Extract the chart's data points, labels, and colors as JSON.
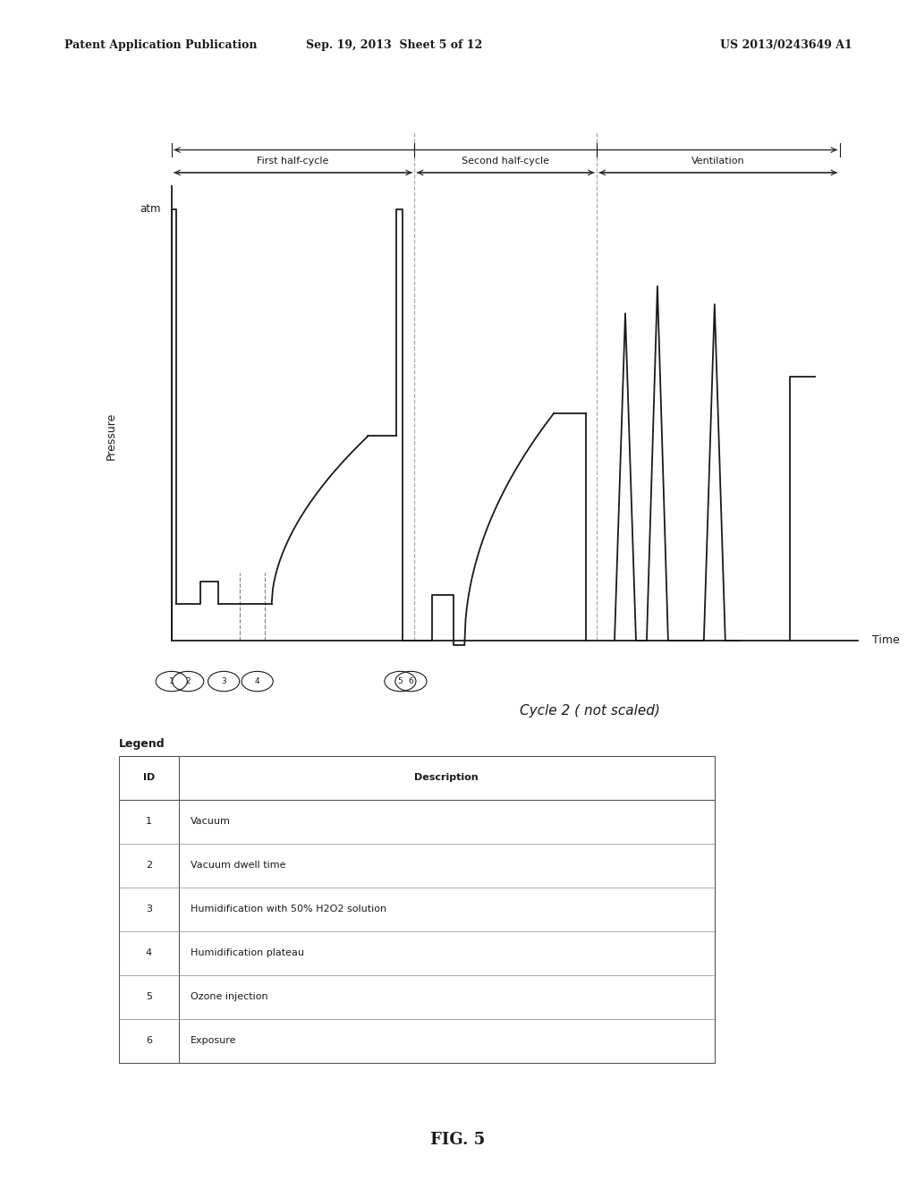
{
  "bg_color": "#ffffff",
  "header_left": "Patent Application Publication",
  "header_center": "Sep. 19, 2013  Sheet 5 of 12",
  "header_right": "US 2013/0243649 A1",
  "atm_label": "atm",
  "pressure_label": "Pressure",
  "time_label": "Time",
  "cycle_label": "Cycle 2 ( not scaled)",
  "phase_labels": [
    "First half-cycle",
    "Second half-cycle",
    "Ventilation"
  ],
  "fig_label": "FIG. 5",
  "legend_title": "Legend",
  "legend_headers": [
    "ID",
    "Description"
  ],
  "legend_rows": [
    [
      "1",
      "Vacuum"
    ],
    [
      "2",
      "Vacuum dwell time"
    ],
    [
      "3",
      "Humidification with 50% H2O2 solution"
    ],
    [
      "4",
      "Humidification plateau"
    ],
    [
      "5",
      "Ozone injection"
    ],
    [
      "6",
      "Exposure"
    ]
  ],
  "line_color": "#1a1a1a",
  "dashed_color": "#888888",
  "text_color": "#1a1a1a",
  "header_font_size": 9,
  "axis_font_size": 9,
  "label_font_size": 8,
  "legend_font_size": 8
}
